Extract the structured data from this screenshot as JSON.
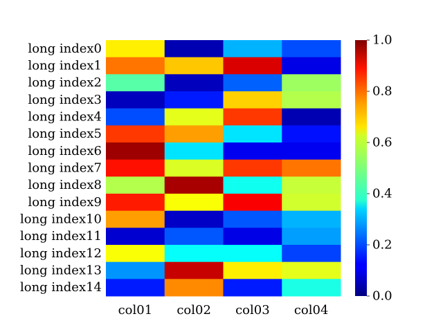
{
  "chart_data": {
    "type": "heatmap",
    "title": "",
    "xlabel": "",
    "ylabel": "",
    "colormap": "jet",
    "vmin": 0.0,
    "vmax": 1.0,
    "columns": [
      "col01",
      "col02",
      "col03",
      "col04"
    ],
    "rows": [
      "long index0",
      "long index1",
      "long index2",
      "long index3",
      "long index4",
      "long index5",
      "long index6",
      "long index7",
      "long index8",
      "long index9",
      "long index10",
      "long index11",
      "long index12",
      "long index13",
      "long index14"
    ],
    "values": [
      [
        0.64,
        0.05,
        0.3,
        0.2
      ],
      [
        0.76,
        0.68,
        0.91,
        0.1
      ],
      [
        0.46,
        0.06,
        0.22,
        0.53
      ],
      [
        0.06,
        0.15,
        0.67,
        0.55
      ],
      [
        0.2,
        0.6,
        0.82,
        0.05
      ],
      [
        0.82,
        0.72,
        0.35,
        0.14
      ],
      [
        0.97,
        0.35,
        0.11,
        0.11
      ],
      [
        0.86,
        0.59,
        0.82,
        0.76
      ],
      [
        0.55,
        0.96,
        0.39,
        0.57
      ],
      [
        0.85,
        0.62,
        0.88,
        0.58
      ],
      [
        0.72,
        0.07,
        0.21,
        0.3
      ],
      [
        0.08,
        0.21,
        0.1,
        0.28
      ],
      [
        0.62,
        0.38,
        0.38,
        0.19
      ],
      [
        0.27,
        0.93,
        0.64,
        0.6
      ],
      [
        0.15,
        0.74,
        0.15,
        0.4
      ]
    ],
    "colorbar_ticks": [
      "0.0",
      "0.2",
      "0.4",
      "0.6",
      "0.8",
      "1.0"
    ],
    "legend": "colorbar-right"
  }
}
